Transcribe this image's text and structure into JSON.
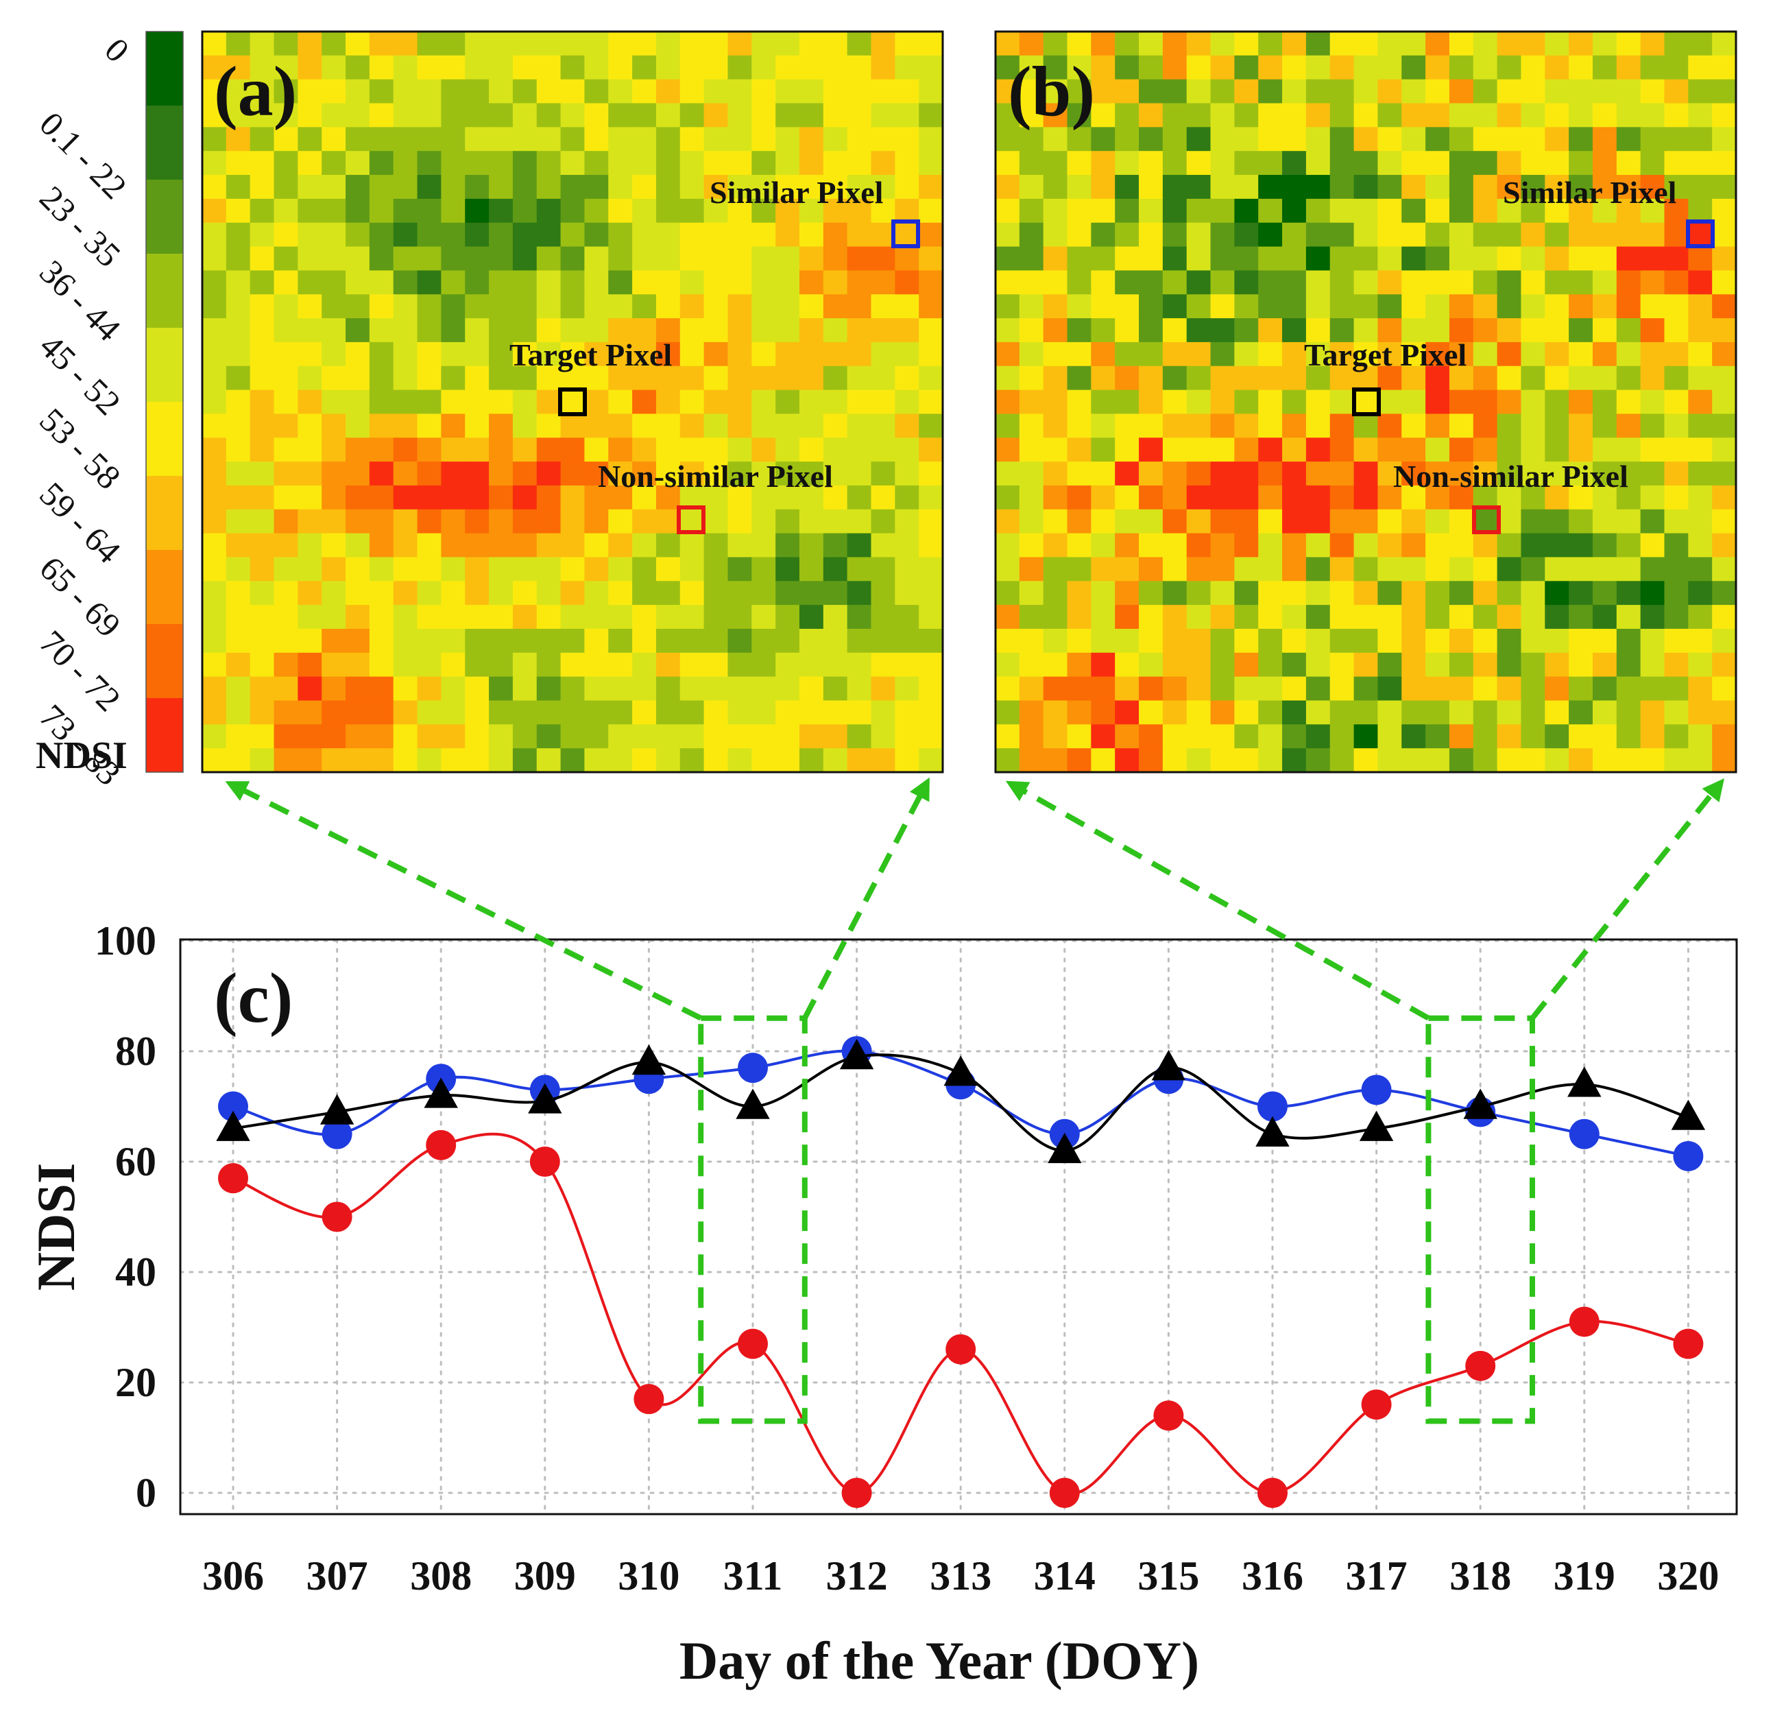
{
  "colors": {
    "red_series": "#e8161b",
    "blue_series": "#1f3ce0",
    "black_series": "#000000",
    "highlight_green": "#2ec21a",
    "grid": "#bdbdbd",
    "target_box": "#000000",
    "similar_box": "#1a2bd8",
    "nonsimilar_box": "#e81818"
  },
  "colorbar": {
    "title": "NDSI",
    "classes": [
      {
        "label": "0",
        "color": "#006400"
      },
      {
        "label": "0.1 - 22",
        "color": "#2f7a15"
      },
      {
        "label": "23 - 35",
        "color": "#5f9a16"
      },
      {
        "label": "36 - 44",
        "color": "#9cc012"
      },
      {
        "label": "45 - 52",
        "color": "#d8e41a"
      },
      {
        "label": "53 - 58",
        "color": "#fbe90e"
      },
      {
        "label": "59 - 64",
        "color": "#fbbe0e"
      },
      {
        "label": "65 - 69",
        "color": "#fb9208"
      },
      {
        "label": "70 - 72",
        "color": "#fb6b05"
      },
      {
        "label": "73 - 83",
        "color": "#fa2c10"
      }
    ]
  },
  "maps": [
    {
      "label": "(a)",
      "target_label": "Target Pixel",
      "similar_label": "Similar Pixel",
      "nonsimilar_label": "Non-similar Pixel",
      "seed": 7
    },
    {
      "label": "(b)",
      "target_label": "Target Pixel",
      "similar_label": "Similar Pixel",
      "nonsimilar_label": "Non-similar Pixel",
      "seed": 19
    }
  ],
  "chart_data": {
    "type": "line",
    "panel_label": "(c)",
    "title": "",
    "xlabel": "Day of  the Year (DOY)",
    "ylabel": "NDSI",
    "categories": [
      "306",
      "307",
      "308",
      "309",
      "310",
      "311",
      "312",
      "313",
      "314",
      "315",
      "316",
      "317",
      "318",
      "319",
      "320"
    ],
    "x": [
      306,
      307,
      308,
      309,
      310,
      311,
      312,
      313,
      314,
      315,
      316,
      317,
      318,
      319,
      320
    ],
    "ylim": [
      0,
      100
    ],
    "yticks": [
      0,
      20,
      40,
      60,
      80,
      100
    ],
    "grid": true,
    "series": [
      {
        "name": "Non-similar Pixel",
        "marker": "circle",
        "color": "#e8161b",
        "values": [
          57,
          50,
          63,
          60,
          17,
          27,
          0,
          26,
          0,
          14,
          0,
          16,
          23,
          31,
          27
        ]
      },
      {
        "name": "Similar Pixel",
        "marker": "circle",
        "color": "#1f3ce0",
        "values": [
          70,
          65,
          75,
          73,
          75,
          77,
          80,
          74,
          65,
          75,
          70,
          73,
          69,
          65,
          61
        ]
      },
      {
        "name": "Target Pixel",
        "marker": "triangle",
        "color": "#000000",
        "values": [
          66,
          69,
          72,
          71,
          78,
          70,
          79,
          76,
          62,
          77,
          65,
          66,
          70,
          74,
          68
        ]
      }
    ],
    "highlight_doys": [
      311,
      318
    ],
    "highlight_range": [
      13,
      86
    ]
  }
}
